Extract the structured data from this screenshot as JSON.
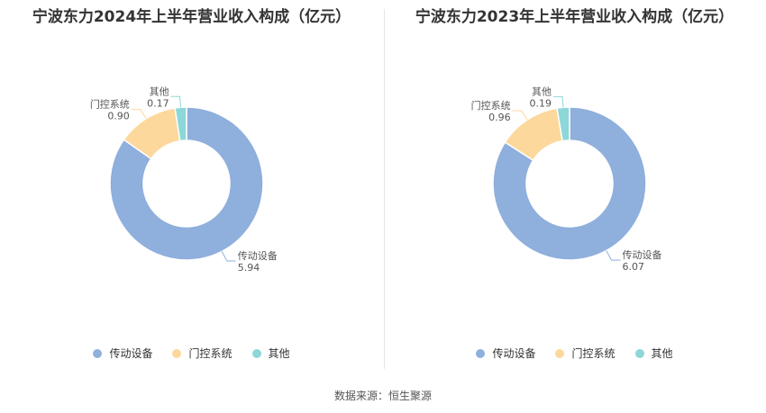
{
  "source_label": "数据来源：恒生聚源",
  "chart_data": [
    {
      "type": "pie",
      "title": "宁波东力2024年上半年营业收入构成（亿元）",
      "categories": [
        "传动设备",
        "门控系统",
        "其他"
      ],
      "values": [
        5.94,
        0.9,
        0.17
      ],
      "value_labels": [
        "5.94",
        "0.90",
        "0.17"
      ],
      "colors": [
        "#8fafdc",
        "#fcd89c",
        "#8dd7d9"
      ],
      "donut": true,
      "legend": "bottom"
    },
    {
      "type": "pie",
      "title": "宁波东力2023年上半年营业收入构成（亿元）",
      "categories": [
        "传动设备",
        "门控系统",
        "其他"
      ],
      "values": [
        6.07,
        0.96,
        0.19
      ],
      "value_labels": [
        "6.07",
        "0.96",
        "0.19"
      ],
      "colors": [
        "#8fafdc",
        "#fcd89c",
        "#8dd7d9"
      ],
      "donut": true,
      "legend": "bottom"
    }
  ]
}
